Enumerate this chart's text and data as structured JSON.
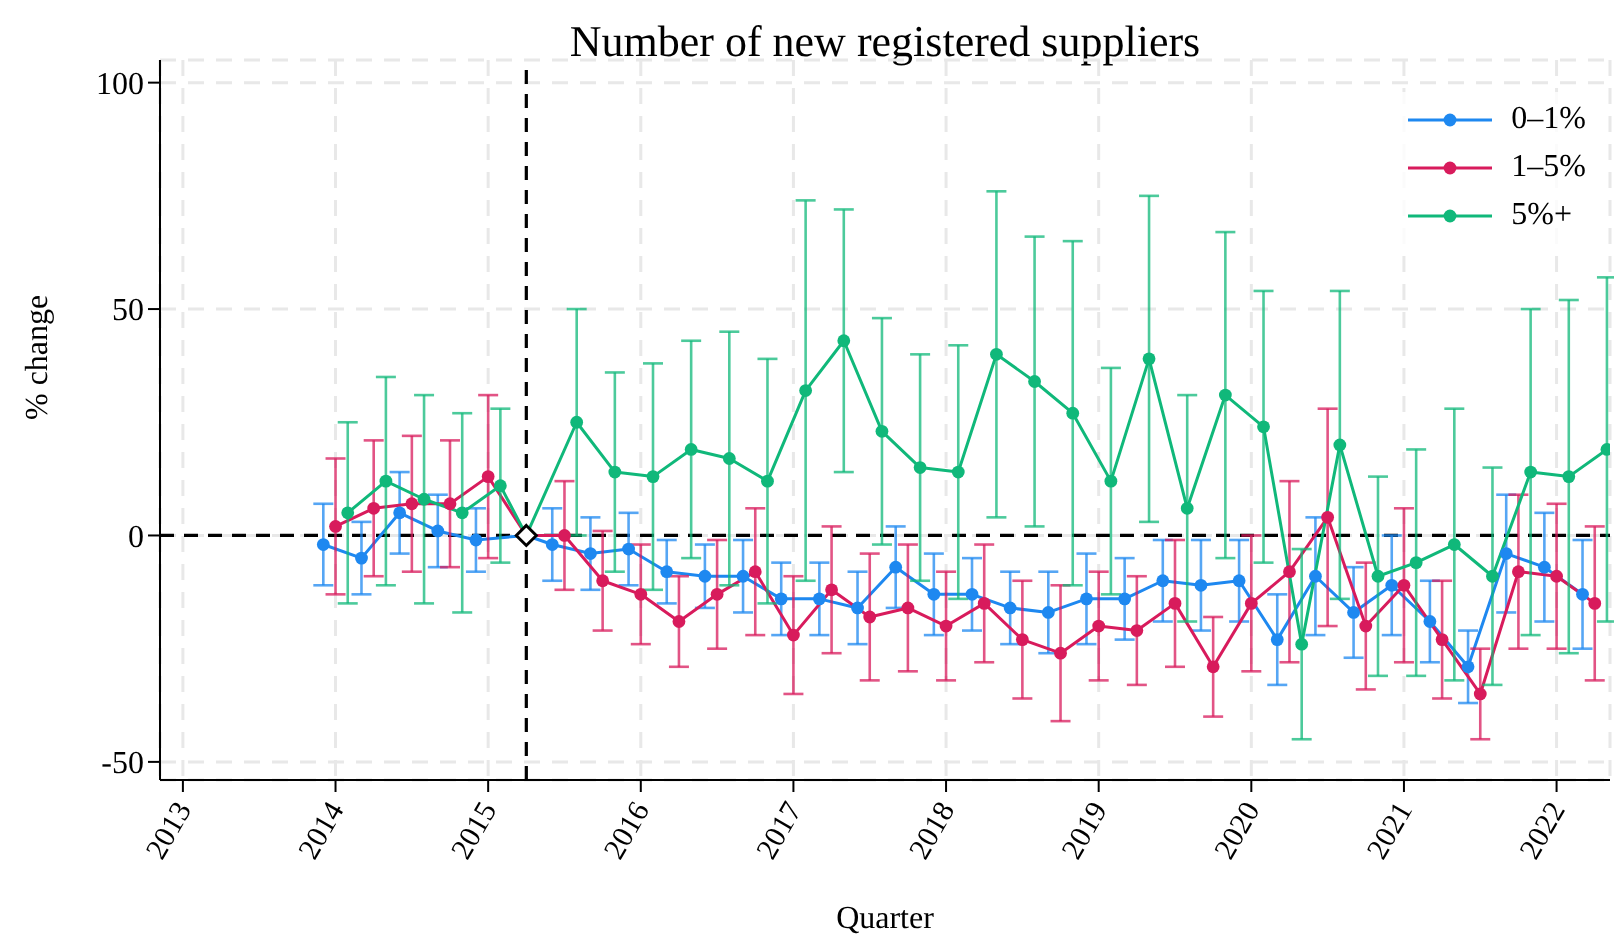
{
  "chart_data": {
    "type": "line",
    "title": "Number of new registered suppliers",
    "xlabel": "Quarter",
    "ylabel": "% change",
    "xlim": [
      2012.85,
      2022.35
    ],
    "xticks": [
      2013,
      2014,
      2015,
      2016,
      2017,
      2018,
      2019,
      2020,
      2021,
      2022
    ],
    "ylim": [
      -54,
      105
    ],
    "yticks": [
      -50,
      0,
      50,
      100
    ],
    "grid": true,
    "legend": "top right",
    "marker": "circle",
    "ref_lines": [
      {
        "axis": "x",
        "value": 2015.25,
        "color": "#000000",
        "line_style": "dashed"
      },
      {
        "axis": "y",
        "value": 0,
        "color": "#000000",
        "line_style": "dashed"
      }
    ],
    "series": [
      {
        "name": "0–1%",
        "color": "#1e88f0",
        "x": [
          2013.92,
          2014.17,
          2014.42,
          2014.67,
          2014.92,
          2015.25,
          2015.42,
          2015.67,
          2015.92,
          2016.17,
          2016.42,
          2016.67,
          2016.92,
          2017.17,
          2017.42,
          2017.67,
          2017.92,
          2018.17,
          2018.42,
          2018.67,
          2018.92,
          2019.17,
          2019.42,
          2019.67,
          2019.92,
          2020.17,
          2020.42,
          2020.67,
          2020.92,
          2021.17,
          2021.42,
          2021.67,
          2021.92,
          2022.17
        ],
        "values": [
          -2,
          -5,
          5,
          1,
          -1,
          0,
          -2,
          -4,
          -3,
          -8,
          -9,
          -9,
          -14,
          -14,
          -16,
          -7,
          -13,
          -13,
          -16,
          -17,
          -14,
          -14,
          -10,
          -11,
          -10,
          -23,
          -9,
          -17,
          -11,
          -19,
          -29,
          -4,
          -7,
          -13
        ],
        "errors": [
          9,
          8,
          9,
          8,
          7,
          null,
          8,
          8,
          8,
          7,
          7,
          8,
          8,
          8,
          8,
          9,
          9,
          8,
          8,
          9,
          10,
          9,
          9,
          10,
          9,
          10,
          13,
          10,
          11,
          9,
          8,
          13,
          12,
          12
        ]
      },
      {
        "name": "1–5%",
        "color": "#d81b5c",
        "x": [
          2014,
          2014.25,
          2014.5,
          2014.75,
          2015,
          2015.25,
          2015.5,
          2015.75,
          2016,
          2016.25,
          2016.5,
          2016.75,
          2017,
          2017.25,
          2017.5,
          2017.75,
          2018,
          2018.25,
          2018.5,
          2018.75,
          2019,
          2019.25,
          2019.5,
          2019.75,
          2020,
          2020.25,
          2020.5,
          2020.75,
          2021,
          2021.25,
          2021.5,
          2021.75,
          2022,
          2022.25
        ],
        "values": [
          2,
          6,
          7,
          7,
          13,
          0,
          0,
          -10,
          -13,
          -19,
          -13,
          -8,
          -22,
          -12,
          -18,
          -16,
          -20,
          -15,
          -23,
          -26,
          -20,
          -21,
          -15,
          -29,
          -15,
          -8,
          4,
          -20,
          -11,
          -23,
          -35,
          -8,
          -9,
          -15
        ],
        "errors": [
          15,
          15,
          15,
          14,
          18,
          null,
          12,
          11,
          11,
          10,
          12,
          14,
          13,
          14,
          14,
          14,
          12,
          13,
          13,
          15,
          12,
          12,
          14,
          11,
          15,
          20,
          24,
          14,
          17,
          13,
          10,
          17,
          16,
          17
        ]
      },
      {
        "name": "5%+",
        "color": "#10b87a",
        "x": [
          2014.08,
          2014.33,
          2014.58,
          2014.83,
          2015.08,
          2015.25,
          2015.58,
          2015.83,
          2016.08,
          2016.33,
          2016.58,
          2016.83,
          2017.08,
          2017.33,
          2017.58,
          2017.83,
          2018.08,
          2018.33,
          2018.58,
          2018.83,
          2019.08,
          2019.33,
          2019.58,
          2019.83,
          2020.08,
          2020.33,
          2020.58,
          2020.83,
          2021.08,
          2021.33,
          2021.58,
          2021.83,
          2022.08,
          2022.33
        ],
        "values": [
          5,
          12,
          8,
          5,
          11,
          0,
          25,
          14,
          13,
          19,
          17,
          12,
          32,
          43,
          23,
          15,
          14,
          40,
          34,
          27,
          12,
          39,
          6,
          31,
          24,
          -24,
          20,
          -9,
          -6,
          -2,
          -9,
          14,
          13,
          19
        ],
        "errors": [
          20,
          23,
          23,
          22,
          17,
          null,
          25,
          22,
          25,
          24,
          28,
          27,
          42,
          29,
          25,
          25,
          28,
          36,
          32,
          38,
          25,
          36,
          25,
          36,
          30,
          21,
          34,
          22,
          25,
          30,
          24,
          36,
          39,
          38
        ]
      },
      {
        "type": "scatter",
        "marker": "diamond",
        "color": "#000000",
        "x": [
          2015.25
        ],
        "values": [
          0
        ]
      }
    ]
  }
}
